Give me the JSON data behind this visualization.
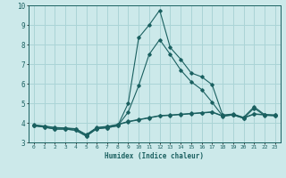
{
  "xlabel": "Humidex (Indice chaleur)",
  "xlim": [
    -0.5,
    23.5
  ],
  "ylim": [
    3,
    10
  ],
  "yticks": [
    3,
    4,
    5,
    6,
    7,
    8,
    9,
    10
  ],
  "xticks": [
    0,
    1,
    2,
    3,
    4,
    5,
    6,
    7,
    8,
    9,
    10,
    11,
    12,
    13,
    14,
    15,
    16,
    17,
    18,
    19,
    20,
    21,
    22,
    23
  ],
  "bg_color": "#cce9ea",
  "grid_color": "#aad4d6",
  "line_color": "#1a6060",
  "lines": [
    [
      3.85,
      3.78,
      3.68,
      3.68,
      3.62,
      3.32,
      3.7,
      3.75,
      3.85,
      5.0,
      8.35,
      9.0,
      9.75,
      7.85,
      7.25,
      6.55,
      6.35,
      5.95,
      4.4,
      4.45,
      4.28,
      4.82,
      4.42,
      4.4
    ],
    [
      3.85,
      3.78,
      3.68,
      3.68,
      3.62,
      3.32,
      3.7,
      3.75,
      3.85,
      4.55,
      5.9,
      7.5,
      8.25,
      7.5,
      6.7,
      6.1,
      5.7,
      5.05,
      4.35,
      4.4,
      4.23,
      4.75,
      4.38,
      4.36
    ],
    [
      3.87,
      3.82,
      3.74,
      3.72,
      3.68,
      3.38,
      3.74,
      3.8,
      3.9,
      4.05,
      4.15,
      4.25,
      4.35,
      4.38,
      4.42,
      4.46,
      4.5,
      4.54,
      4.34,
      4.4,
      4.24,
      4.44,
      4.4,
      4.37
    ],
    [
      3.9,
      3.84,
      3.76,
      3.74,
      3.7,
      3.4,
      3.76,
      3.82,
      3.92,
      4.07,
      4.17,
      4.27,
      4.37,
      4.4,
      4.44,
      4.48,
      4.52,
      4.56,
      4.36,
      4.42,
      4.26,
      4.46,
      4.42,
      4.39
    ]
  ]
}
